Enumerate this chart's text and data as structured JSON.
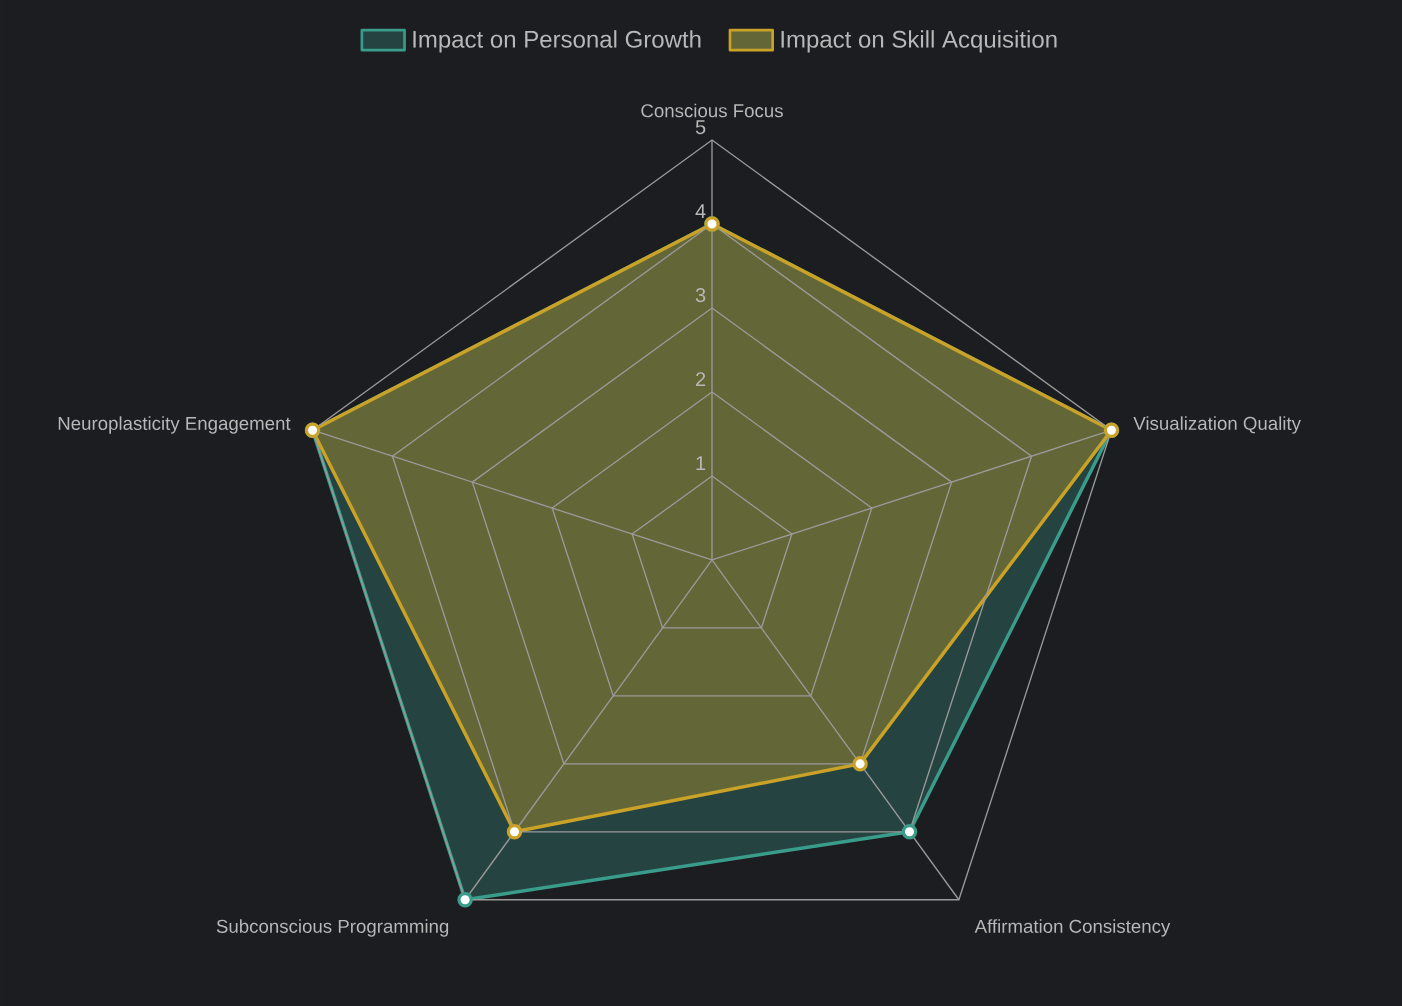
{
  "chart_data": {
    "type": "radar",
    "categories": [
      "Conscious Focus",
      "Visualization Quality",
      "Affirmation Consistency",
      "Subconscious Programming",
      "Neuroplasticity Engagement"
    ],
    "series": [
      {
        "name": "Impact on Personal Growth",
        "color": "#3a9c8a",
        "values": [
          4,
          5,
          4,
          5,
          5
        ]
      },
      {
        "name": "Impact on Skill Acquisition",
        "color": "#c9a227",
        "values": [
          4,
          5,
          3,
          4,
          5
        ]
      }
    ],
    "ylim": [
      0,
      5
    ],
    "yticks": [
      1,
      2,
      3,
      4,
      5
    ],
    "grid": true,
    "legend": "top",
    "marker": "circle"
  }
}
